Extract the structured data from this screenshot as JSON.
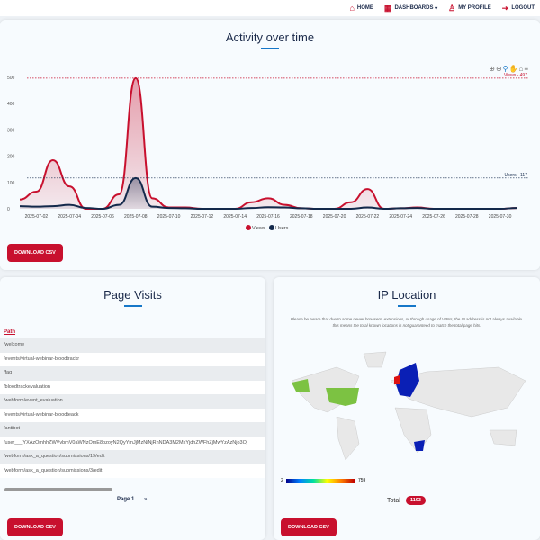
{
  "nav": {
    "items": [
      {
        "label": "HOME",
        "icon": "home-icon"
      },
      {
        "label": "DASHBOARDS",
        "icon": "grid-icon"
      },
      {
        "label": "MY PROFILE",
        "icon": "user-icon"
      },
      {
        "label": "LOGOUT",
        "icon": "logout-icon"
      }
    ]
  },
  "activity": {
    "title": "Activity over time",
    "download": "DOWNLOAD CSV"
  },
  "chart_data": {
    "type": "area",
    "title": "Activity over time",
    "x": [
      "2025-07-01",
      "2025-07-02",
      "2025-07-03",
      "2025-07-04",
      "2025-07-05",
      "2025-07-06",
      "2025-07-07",
      "2025-07-08",
      "2025-07-09",
      "2025-07-10",
      "2025-07-11",
      "2025-07-12",
      "2025-07-13",
      "2025-07-14",
      "2025-07-15",
      "2025-07-16",
      "2025-07-17",
      "2025-07-18",
      "2025-07-19",
      "2025-07-20",
      "2025-07-21",
      "2025-07-22",
      "2025-07-23",
      "2025-07-24",
      "2025-07-25",
      "2025-07-26",
      "2025-07-27",
      "2025-07-28",
      "2025-07-29",
      "2025-07-30",
      "2025-07-31"
    ],
    "xticks": [
      "2025-07-02",
      "2025-07-04",
      "2025-07-06",
      "2025-07-08",
      "2025-07-10",
      "2025-07-12",
      "2025-07-14",
      "2025-07-16",
      "2025-07-18",
      "2025-07-20",
      "2025-07-22",
      "2025-07-24",
      "2025-07-26",
      "2025-07-28",
      "2025-07-30"
    ],
    "yticks": [
      0,
      100,
      200,
      300,
      400,
      500
    ],
    "ylim": [
      0,
      500
    ],
    "series": [
      {
        "name": "Views",
        "color": "#c8102e",
        "values": [
          35,
          65,
          185,
          85,
          0,
          0,
          55,
          497,
          40,
          5,
          5,
          0,
          0,
          0,
          25,
          40,
          15,
          2,
          0,
          0,
          25,
          75,
          0,
          2,
          5,
          0,
          0,
          0,
          0,
          0,
          3
        ]
      },
      {
        "name": "Users",
        "color": "#13294b",
        "values": [
          10,
          8,
          10,
          15,
          3,
          0,
          15,
          117,
          8,
          3,
          2,
          0,
          0,
          0,
          3,
          6,
          5,
          2,
          0,
          0,
          0,
          5,
          0,
          2,
          3,
          0,
          0,
          0,
          0,
          0,
          3
        ]
      }
    ],
    "annotations": [
      {
        "label": "Views - 497",
        "y": 497
      },
      {
        "label": "Users - 117",
        "y": 117
      }
    ],
    "legend": "bottom"
  },
  "visits": {
    "title": "Page Visits",
    "header": "Path",
    "rows": [
      "/welcome",
      "/events/virtual-webinar-bloodtrackr",
      "/faq",
      "/bloodtrackevaluation",
      "/webform/event_evaluation",
      "/events/virtual-webinar-bloodteack",
      "/antibot",
      "/user___YXAzOmhhZWVvbmV0aWNzOmE8bzoyN2QyYmJjMzNiNjRhNDA3M2MxYjdhZWFhZjMwYzAzNjo3Oj",
      "/webform/ask_a_question/submissions/19/edit",
      "/webform/ask_a_question/submissions/3/edit"
    ],
    "page": "Page 1",
    "next": "»",
    "download": "DOWNLOAD CSV"
  },
  "ip": {
    "title": "IP Location",
    "note": "Please be aware that due to some newer browsers, extensions, or through usage of VPNs, the IP address is not always available. this means the total known locations is not guaranteed to match the total page hits.",
    "scale_min": "2",
    "scale_max": "759",
    "total_label": "Total",
    "total": "1193",
    "download": "DOWNLOAD CSV"
  }
}
